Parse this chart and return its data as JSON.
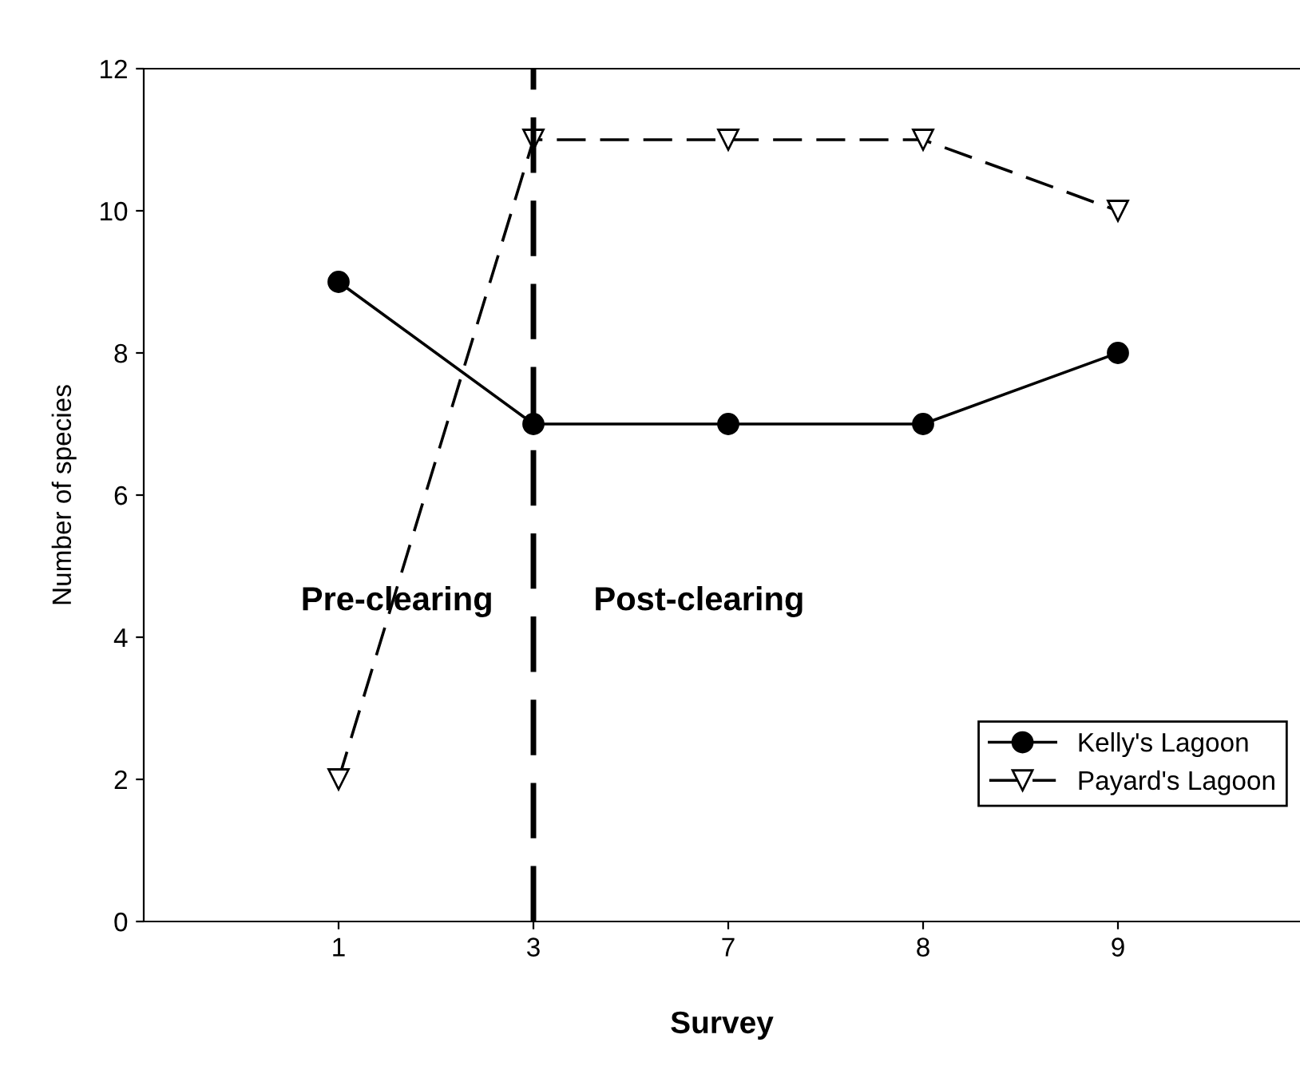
{
  "chart_data": {
    "type": "line",
    "xlabel": "Survey",
    "ylabel": "Number of species",
    "categories": [
      "1",
      "3",
      "7",
      "8",
      "9"
    ],
    "series": [
      {
        "name": "Kelly's Lagoon",
        "color": "#000000",
        "values": [
          9,
          7,
          7,
          7,
          8
        ],
        "marker": "circle",
        "line_style": "solid"
      },
      {
        "name": "Payard's Lagoon",
        "color": "#000000",
        "values": [
          2,
          11,
          11,
          11,
          10
        ],
        "marker": "triangle",
        "line_style": "dashed"
      }
    ],
    "ylim": [
      0,
      12
    ],
    "yticks": [
      0,
      2,
      4,
      6,
      8,
      10,
      12
    ],
    "ref_lines": [
      {
        "axis": "x",
        "value": "3",
        "color": "#000000",
        "line_style": "dashed"
      }
    ],
    "annotations": [
      "Pre-clearing",
      "Post-clearing"
    ],
    "legend": "bottom right",
    "grid": false
  }
}
